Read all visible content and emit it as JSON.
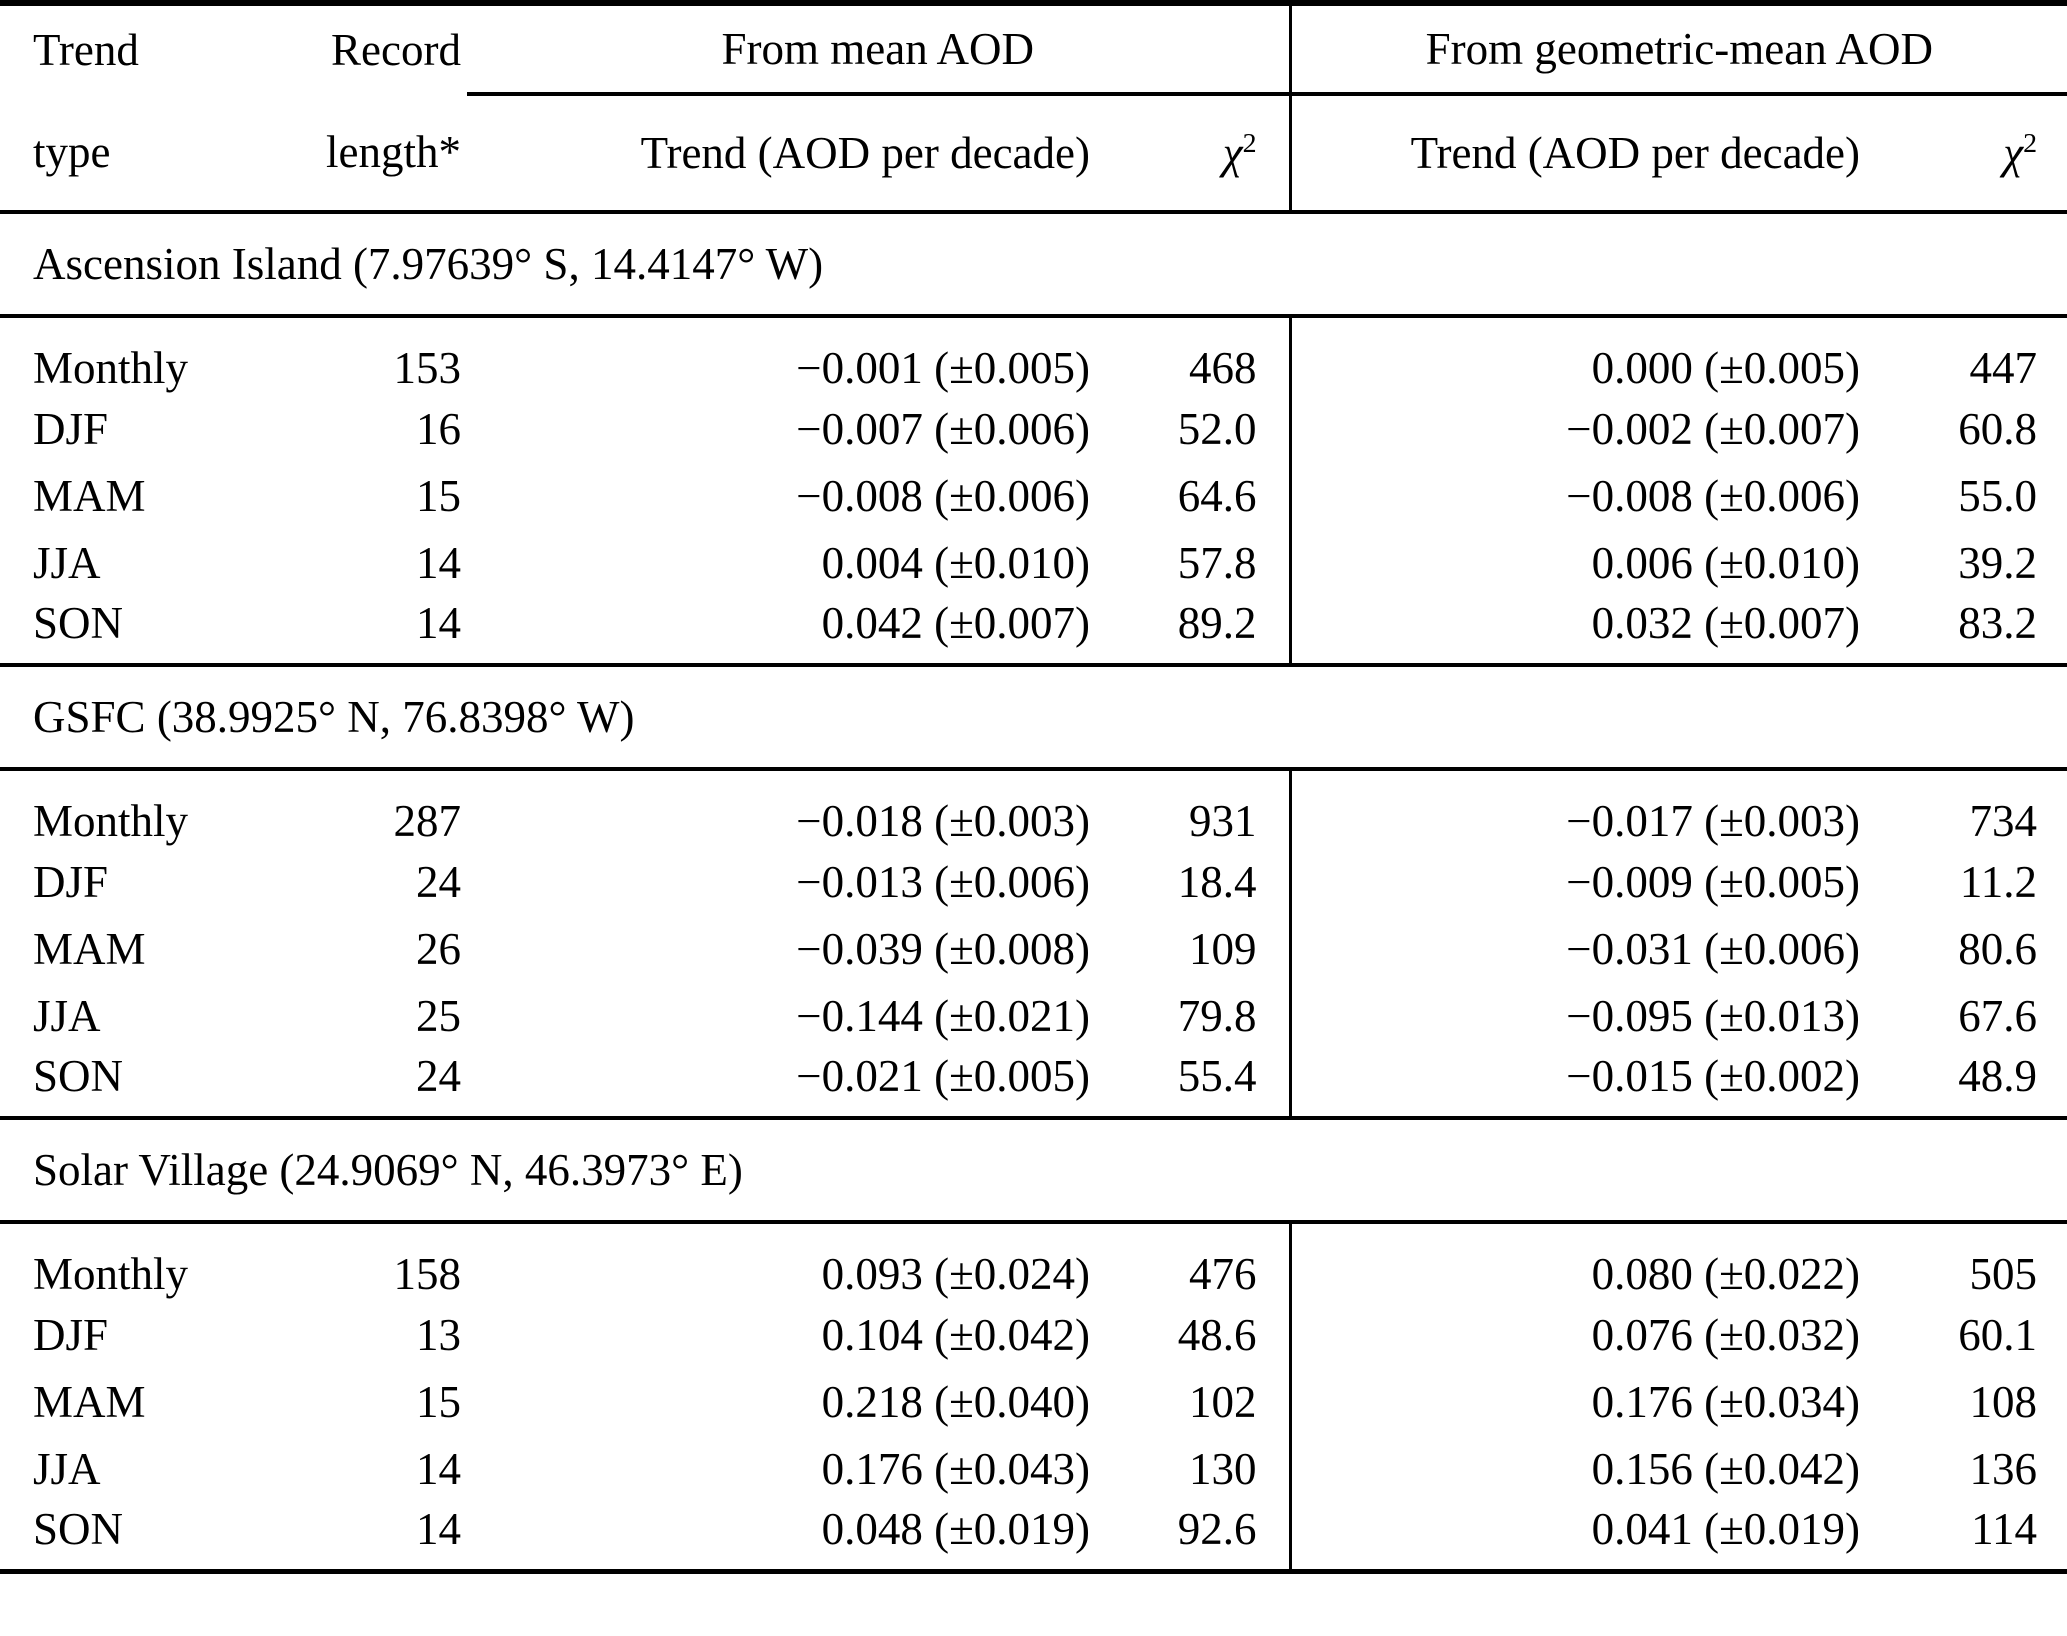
{
  "header": {
    "col1_line1": "Trend",
    "col1_line2": "type",
    "col2_line1": "Record",
    "col2_line2": "length*",
    "group_mean": "From mean AOD",
    "group_geo": "From geometric-mean AOD",
    "trend_label": "Trend (AOD per decade)",
    "chi_base": "χ",
    "chi_sup": "2"
  },
  "sections": [
    {
      "title": "Ascension Island (7.97639° S, 14.4147° W)",
      "rows": [
        [
          "Monthly",
          "153",
          "−0.001 (±0.005)",
          "468",
          "0.000 (±0.005)",
          "447"
        ],
        [
          "DJF",
          "16",
          "−0.007 (±0.006)",
          "52.0",
          "−0.002 (±0.007)",
          "60.8"
        ],
        [
          "MAM",
          "15",
          "−0.008 (±0.006)",
          "64.6",
          "−0.008 (±0.006)",
          "55.0"
        ],
        [
          "JJA",
          "14",
          "0.004 (±0.010)",
          "57.8",
          "0.006 (±0.010)",
          "39.2"
        ],
        [
          "SON",
          "14",
          "0.042 (±0.007)",
          "89.2",
          "0.032 (±0.007)",
          "83.2"
        ]
      ]
    },
    {
      "title": "GSFC (38.9925° N, 76.8398° W)",
      "rows": [
        [
          "Monthly",
          "287",
          "−0.018 (±0.003)",
          "931",
          "−0.017 (±0.003)",
          "734"
        ],
        [
          "DJF",
          "24",
          "−0.013 (±0.006)",
          "18.4",
          "−0.009 (±0.005)",
          "11.2"
        ],
        [
          "MAM",
          "26",
          "−0.039 (±0.008)",
          "109",
          "−0.031 (±0.006)",
          "80.6"
        ],
        [
          "JJA",
          "25",
          "−0.144 (±0.021)",
          "79.8",
          "−0.095 (±0.013)",
          "67.6"
        ],
        [
          "SON",
          "24",
          "−0.021 (±0.005)",
          "55.4",
          "−0.015 (±0.002)",
          "48.9"
        ]
      ]
    },
    {
      "title": "Solar Village (24.9069° N, 46.3973° E)",
      "rows": [
        [
          "Monthly",
          "158",
          "0.093 (±0.024)",
          "476",
          "0.080 (±0.022)",
          "505"
        ],
        [
          "DJF",
          "13",
          "0.104 (±0.042)",
          "48.6",
          "0.076 (±0.032)",
          "60.1"
        ],
        [
          "MAM",
          "15",
          "0.218 (±0.040)",
          "102",
          "0.176 (±0.034)",
          "108"
        ],
        [
          "JJA",
          "14",
          "0.176 (±0.043)",
          "130",
          "0.156 (±0.042)",
          "136"
        ],
        [
          "SON",
          "14",
          "0.048 (±0.019)",
          "92.6",
          "0.041 (±0.019)",
          "114"
        ]
      ]
    }
  ],
  "colors": {
    "text": "#000000",
    "background": "#ffffff",
    "rule": "#000000"
  }
}
